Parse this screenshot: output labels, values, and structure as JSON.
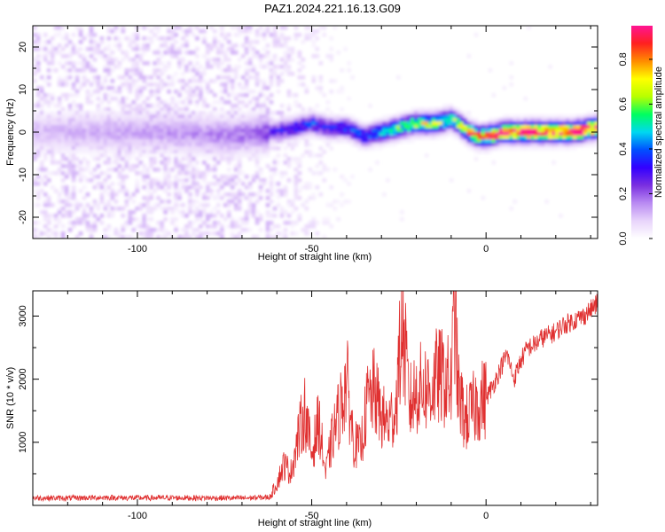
{
  "title": "PAZ1.2024.221.16.13.G09",
  "colors": {
    "snr_line": "#e03030",
    "axis": "#000000",
    "palette": [
      "#ffffff",
      "#e8d4fb",
      "#b98af2",
      "#7a2fe0",
      "#3300ff",
      "#0050ff",
      "#00d8f0",
      "#00ff60",
      "#b8ff00",
      "#ffff00",
      "#ff8c00",
      "#ff2020",
      "#ff1493"
    ]
  },
  "chart_data": [
    {
      "type": "heatmap",
      "title": "PAZ1.2024.221.16.13.G09",
      "xlabel": "Height of straight line (km)",
      "ylabel": "Frequency (Hz)",
      "xlim": [
        -130,
        32
      ],
      "ylim": [
        -25,
        25
      ],
      "x_ticks": [
        "-100",
        "-50",
        "0"
      ],
      "y_ticks": [
        "-20",
        "-10",
        "0",
        "10",
        "20"
      ],
      "colorbar": {
        "label": "Normalized spectral amplitude",
        "range": [
          0.0,
          0.95
        ],
        "ticks": [
          "0.0",
          "0.2",
          "0.4",
          "0.6",
          "0.8"
        ]
      },
      "ridge_frequency": {
        "x": [
          -130,
          -110,
          -90,
          -75,
          -62,
          -55,
          -50,
          -45,
          -40,
          -35,
          -30,
          -25,
          -20,
          -15,
          -10,
          -8,
          -5,
          -2,
          0,
          5,
          10,
          15,
          20,
          25,
          32
        ],
        "y": [
          0,
          0,
          0,
          -1,
          0,
          1,
          2,
          1,
          1,
          -1,
          0,
          1,
          2,
          2,
          3,
          2,
          0,
          -1,
          -1,
          0,
          0,
          0,
          0,
          0,
          1
        ]
      },
      "ridge_amplitude": {
        "x": [
          -130,
          -100,
          -80,
          -65,
          -60,
          -55,
          -50,
          -45,
          -40,
          -35,
          -30,
          -25,
          -20,
          -15,
          -10,
          -5,
          0,
          5,
          10,
          15,
          20,
          25,
          32
        ],
        "y": [
          0.1,
          0.13,
          0.15,
          0.18,
          0.28,
          0.33,
          0.36,
          0.33,
          0.37,
          0.38,
          0.45,
          0.55,
          0.62,
          0.62,
          0.58,
          0.72,
          0.82,
          0.88,
          0.9,
          0.92,
          0.95,
          0.93,
          0.9
        ]
      }
    },
    {
      "type": "line",
      "xlabel": "Height of straight line (km)",
      "ylabel": "SNR (10 * v/v)",
      "xlim": [
        -130,
        32
      ],
      "ylim": [
        0,
        3400
      ],
      "x_ticks": [
        "-100",
        "-50",
        "0"
      ],
      "y_ticks": [
        "1000",
        "2000",
        "3000"
      ],
      "x": [
        -130,
        -120,
        -110,
        -100,
        -90,
        -80,
        -70,
        -62,
        -60,
        -58,
        -56,
        -54,
        -52,
        -50,
        -48,
        -46,
        -44,
        -42,
        -40,
        -38,
        -36,
        -34,
        -32,
        -30,
        -28,
        -26,
        -24,
        -22,
        -20,
        -18,
        -16,
        -14,
        -12,
        -10,
        -9,
        -8,
        -6,
        -4,
        -2,
        0,
        2,
        4,
        6,
        8,
        10,
        12,
        14,
        16,
        18,
        20,
        22,
        24,
        26,
        28,
        30,
        32
      ],
      "y": [
        120,
        115,
        125,
        118,
        120,
        118,
        115,
        130,
        350,
        650,
        520,
        1050,
        1500,
        800,
        1350,
        500,
        1100,
        1500,
        2000,
        1000,
        900,
        1650,
        1800,
        1400,
        1300,
        1500,
        2900,
        1600,
        1800,
        1900,
        1800,
        2050,
        2000,
        1900,
        3200,
        1800,
        1350,
        1500,
        1650,
        1700,
        1900,
        2150,
        2400,
        2000,
        2300,
        2500,
        2550,
        2650,
        2700,
        2750,
        2850,
        2900,
        2950,
        3000,
        3100,
        3200
      ]
    }
  ]
}
